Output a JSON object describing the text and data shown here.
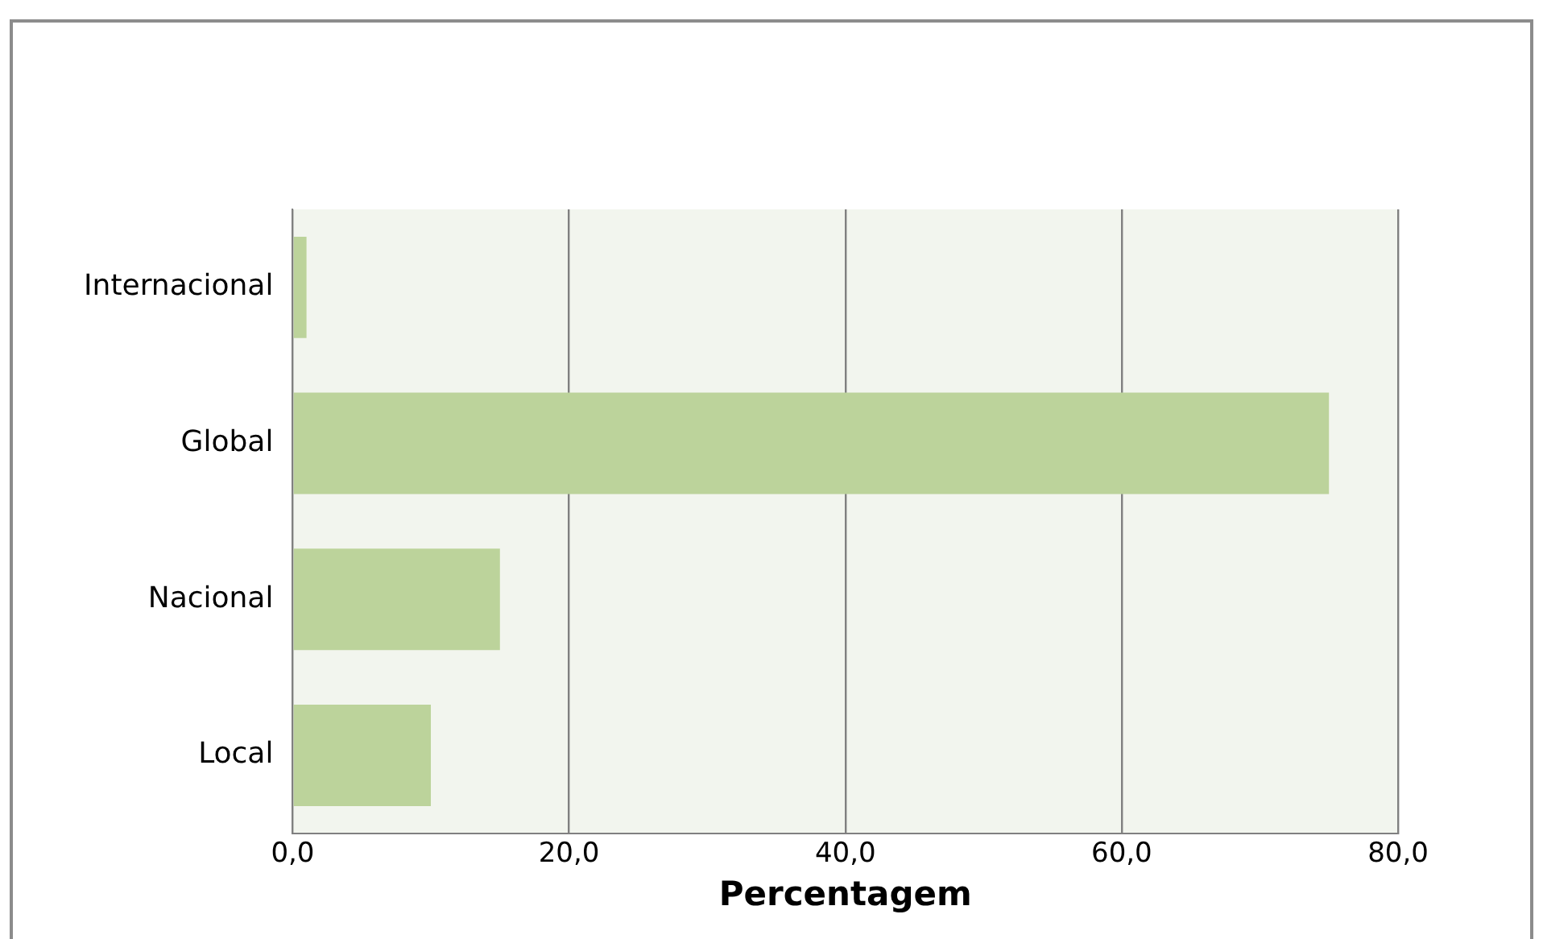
{
  "chart_data": {
    "type": "bar",
    "orientation": "horizontal",
    "xlabel": "Percentagem",
    "categories": [
      "Internacional",
      "Global",
      "Nacional",
      "Local"
    ],
    "values": [
      1,
      75,
      15,
      10
    ],
    "color": "#bcd39b",
    "xlim": [
      0,
      80
    ],
    "xticks": [
      {
        "value": 0,
        "label": "0,0"
      },
      {
        "value": 20,
        "label": "20,0"
      },
      {
        "value": 40,
        "label": "40,0"
      },
      {
        "value": 60,
        "label": "60,0"
      },
      {
        "value": 80,
        "label": "80,0"
      }
    ],
    "grid": "x",
    "legend": false
  }
}
